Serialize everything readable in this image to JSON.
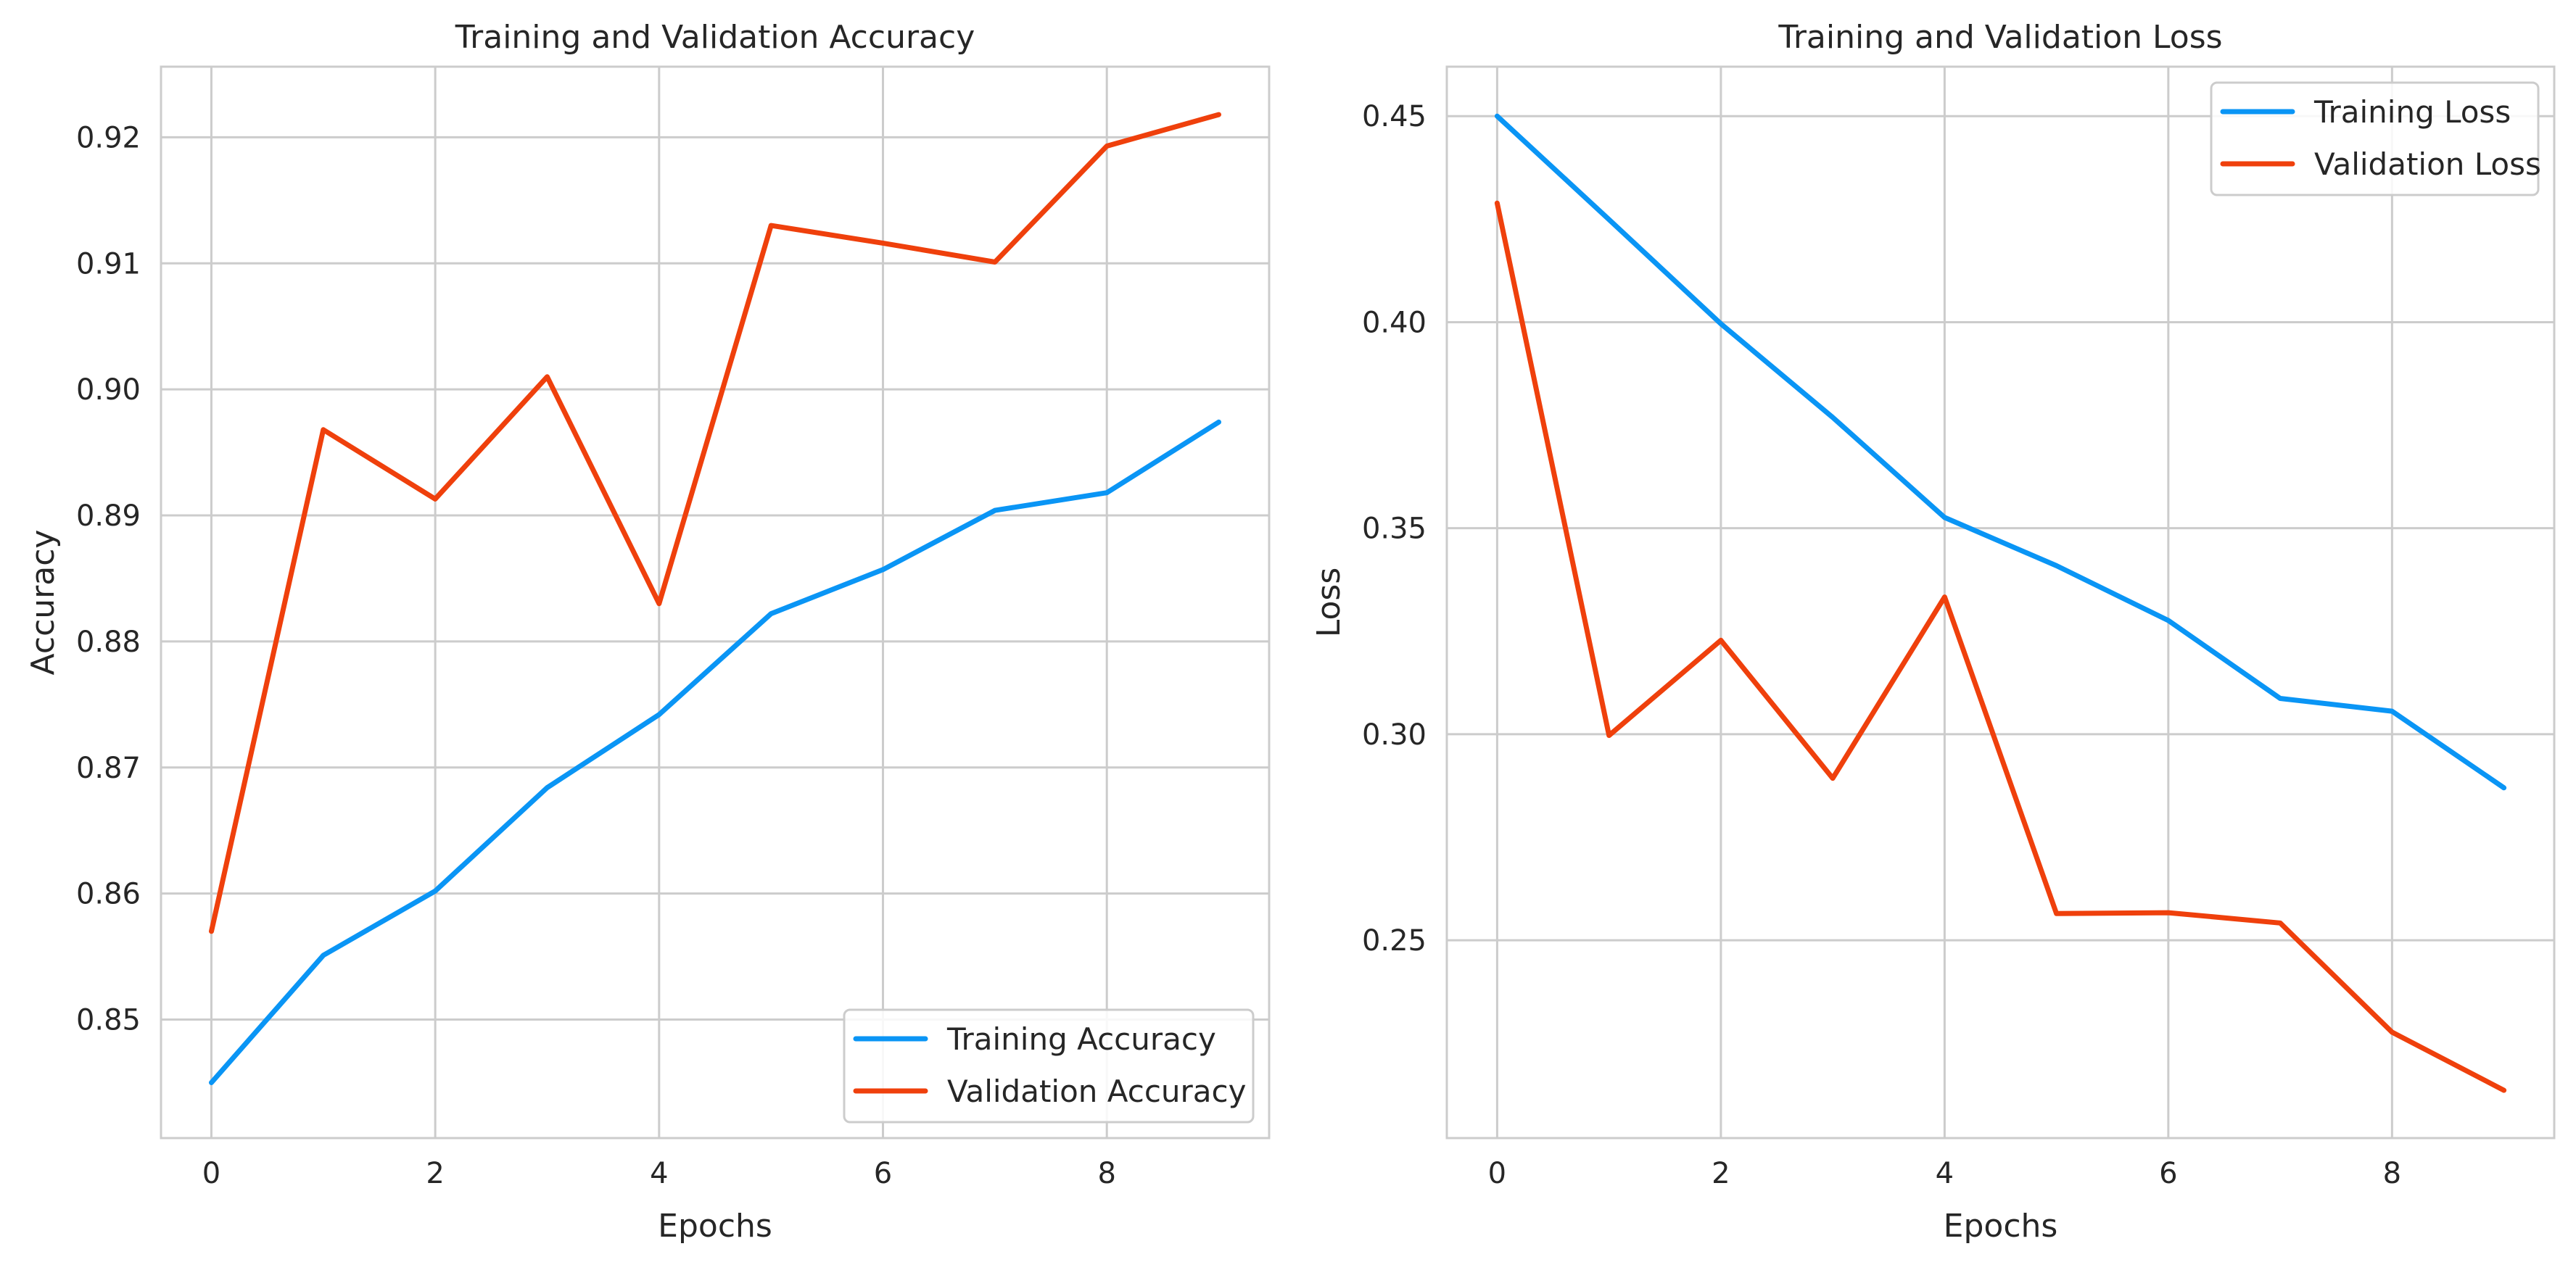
{
  "chart_data": [
    {
      "type": "line",
      "title": "Training and Validation Accuracy",
      "xlabel": "Epochs",
      "ylabel": "Accuracy",
      "x": [
        0,
        1,
        2,
        3,
        4,
        5,
        6,
        7,
        8,
        9
      ],
      "xlim": [
        -0.45,
        9.45
      ],
      "ylim": [
        0.8406,
        0.9256
      ],
      "xticks": [
        0,
        2,
        4,
        6,
        8
      ],
      "yticks": [
        0.85,
        0.86,
        0.87,
        0.88,
        0.89,
        0.9,
        0.91,
        0.92
      ],
      "ytick_labels": [
        "0.85",
        "0.86",
        "0.87",
        "0.88",
        "0.89",
        "0.90",
        "0.91",
        "0.92"
      ],
      "grid": true,
      "legend_position": "bottom-right",
      "series": [
        {
          "name": "Training Accuracy",
          "color": "#0a95f5",
          "values": [
            0.845,
            0.8551,
            0.8602,
            0.8684,
            0.8742,
            0.8822,
            0.8857,
            0.8904,
            0.8918,
            0.8974
          ]
        },
        {
          "name": "Validation Accuracy",
          "color": "#ef400c",
          "values": [
            0.857,
            0.8968,
            0.8913,
            0.901,
            0.883,
            0.913,
            0.9116,
            0.9101,
            0.9193,
            0.9218
          ]
        }
      ]
    },
    {
      "type": "line",
      "title": "Training and Validation Loss",
      "xlabel": "Epochs",
      "ylabel": "Loss",
      "x": [
        0,
        1,
        2,
        3,
        4,
        5,
        6,
        7,
        8,
        9
      ],
      "xlim": [
        -0.45,
        9.45
      ],
      "ylim": [
        0.202,
        0.462
      ],
      "xticks": [
        0,
        2,
        4,
        6,
        8
      ],
      "yticks": [
        0.25,
        0.3,
        0.35,
        0.4,
        0.45
      ],
      "ytick_labels": [
        "0.25",
        "0.30",
        "0.35",
        "0.40",
        "0.45"
      ],
      "grid": true,
      "legend_position": "top-right",
      "series": [
        {
          "name": "Training Loss",
          "color": "#0a95f5",
          "values": [
            0.45,
            0.4249,
            0.3996,
            0.3769,
            0.3526,
            0.3409,
            0.3276,
            0.3087,
            0.3056,
            0.287
          ]
        },
        {
          "name": "Validation Loss",
          "color": "#ef400c",
          "values": [
            0.4289,
            0.2997,
            0.3228,
            0.2893,
            0.3333,
            0.2565,
            0.2567,
            0.2542,
            0.2277,
            0.2136
          ]
        }
      ]
    }
  ]
}
